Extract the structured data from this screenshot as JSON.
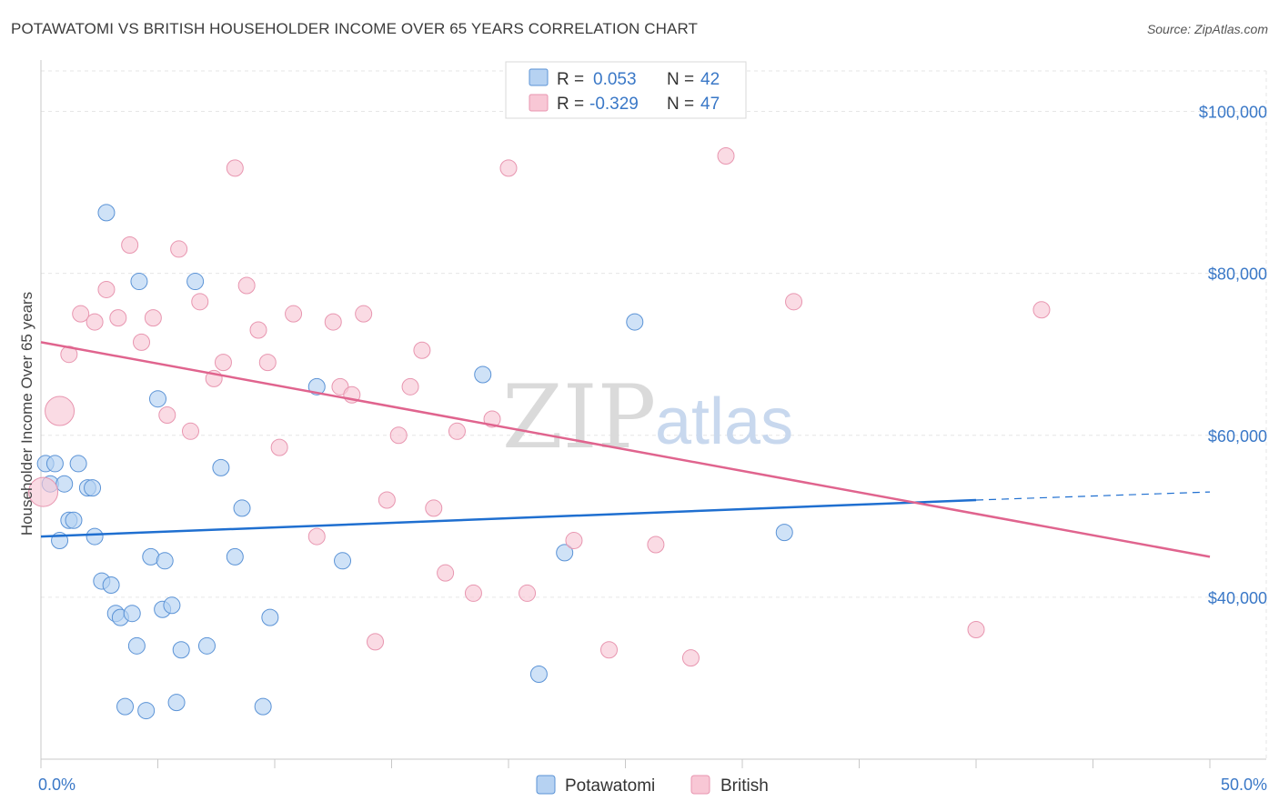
{
  "header": {
    "title": "POTAWATOMI VS BRITISH HOUSEHOLDER INCOME OVER 65 YEARS CORRELATION CHART",
    "source": "Source: ZipAtlas.com"
  },
  "watermark": {
    "zip": "ZIP",
    "atlas": "atlas"
  },
  "colors": {
    "potawatomi_fill": "#b6d2f2",
    "potawatomi_stroke": "#5b93d6",
    "potawatomi_line": "#1f6fd0",
    "british_fill": "#f8c7d5",
    "british_stroke": "#e896b0",
    "british_line": "#e0648e",
    "tick_label": "#3a78c7",
    "grid": "#e6e6e6"
  },
  "legend": {
    "rows": [
      {
        "r_label": "R =",
        "r_value": "0.053",
        "n_label": "N =",
        "n_value": "42"
      },
      {
        "r_label": "R =",
        "r_value": "-0.329",
        "n_label": "N =",
        "n_value": "47"
      }
    ]
  },
  "chart_data": {
    "type": "scatter",
    "title": "POTAWATOMI VS BRITISH HOUSEHOLDER INCOME OVER 65 YEARS CORRELATION CHART",
    "xlabel": "",
    "ylabel": "Householder Income Over 65 years",
    "xlim": [
      0,
      50
    ],
    "ylim": [
      20000,
      105000
    ],
    "x_tick_labels": [
      "0.0%",
      "50.0%"
    ],
    "y_ticks": [
      40000,
      60000,
      80000,
      100000
    ],
    "y_tick_labels": [
      "$40,000",
      "$60,000",
      "$80,000",
      "$100,000"
    ],
    "grid": true,
    "legend_position": "top-center",
    "series": [
      {
        "name": "Potawatomi",
        "R": 0.053,
        "N": 42,
        "trend": {
          "x": [
            0,
            40
          ],
          "y": [
            47500,
            52000
          ],
          "dashed_extension_to_x": 50,
          "dashed_extension_y": 53000
        },
        "points": [
          [
            0.2,
            56500,
            1
          ],
          [
            0.4,
            54000,
            1
          ],
          [
            0.6,
            56500,
            1
          ],
          [
            1.0,
            54000,
            1
          ],
          [
            0.8,
            47000,
            1
          ],
          [
            1.2,
            49500,
            1
          ],
          [
            1.4,
            49500,
            1
          ],
          [
            1.6,
            56500,
            1
          ],
          [
            2.0,
            53500,
            1
          ],
          [
            2.2,
            53500,
            1
          ],
          [
            2.3,
            47500,
            1
          ],
          [
            2.6,
            42000,
            1
          ],
          [
            3.0,
            41500,
            1
          ],
          [
            2.8,
            87500,
            1
          ],
          [
            3.2,
            38000,
            1
          ],
          [
            3.4,
            37500,
            1
          ],
          [
            3.9,
            38000,
            1
          ],
          [
            4.1,
            34000,
            1
          ],
          [
            4.2,
            79000,
            1
          ],
          [
            3.6,
            26500,
            1
          ],
          [
            4.5,
            26000,
            1
          ],
          [
            4.7,
            45000,
            1
          ],
          [
            5.0,
            64500,
            1
          ],
          [
            5.2,
            38500,
            1
          ],
          [
            5.3,
            44500,
            1
          ],
          [
            5.6,
            39000,
            1
          ],
          [
            5.8,
            27000,
            1
          ],
          [
            6.0,
            33500,
            1
          ],
          [
            6.6,
            79000,
            1
          ],
          [
            7.1,
            34000,
            1
          ],
          [
            7.7,
            56000,
            1
          ],
          [
            8.3,
            45000,
            1
          ],
          [
            8.6,
            51000,
            1
          ],
          [
            9.5,
            26500,
            1
          ],
          [
            9.8,
            37500,
            1
          ],
          [
            11.8,
            66000,
            1
          ],
          [
            12.9,
            44500,
            1
          ],
          [
            18.9,
            67500,
            1
          ],
          [
            21.3,
            30500,
            1
          ],
          [
            22.4,
            45500,
            1
          ],
          [
            25.4,
            74000,
            1
          ],
          [
            31.8,
            48000,
            1
          ]
        ]
      },
      {
        "name": "British",
        "R": -0.329,
        "N": 47,
        "trend": {
          "x": [
            0,
            50
          ],
          "y": [
            71500,
            45000
          ]
        },
        "points": [
          [
            0.1,
            53000,
            2
          ],
          [
            0.8,
            63000,
            2
          ],
          [
            1.2,
            70000,
            1
          ],
          [
            1.7,
            75000,
            1
          ],
          [
            2.3,
            74000,
            1
          ],
          [
            2.8,
            78000,
            1
          ],
          [
            3.3,
            74500,
            1
          ],
          [
            3.8,
            83500,
            1
          ],
          [
            4.3,
            71500,
            1
          ],
          [
            4.8,
            74500,
            1
          ],
          [
            5.4,
            62500,
            1
          ],
          [
            5.9,
            83000,
            1
          ],
          [
            6.4,
            60500,
            1
          ],
          [
            6.8,
            76500,
            1
          ],
          [
            7.4,
            67000,
            1
          ],
          [
            7.8,
            69000,
            1
          ],
          [
            8.3,
            93000,
            1
          ],
          [
            8.8,
            78500,
            1
          ],
          [
            9.3,
            73000,
            1
          ],
          [
            9.7,
            69000,
            1
          ],
          [
            10.2,
            58500,
            1
          ],
          [
            10.8,
            75000,
            1
          ],
          [
            11.8,
            47500,
            1
          ],
          [
            12.5,
            74000,
            1
          ],
          [
            12.8,
            66000,
            1
          ],
          [
            13.3,
            65000,
            1
          ],
          [
            13.8,
            75000,
            1
          ],
          [
            14.3,
            34500,
            1
          ],
          [
            14.8,
            52000,
            1
          ],
          [
            15.3,
            60000,
            1
          ],
          [
            15.8,
            66000,
            1
          ],
          [
            16.3,
            70500,
            1
          ],
          [
            16.8,
            51000,
            1
          ],
          [
            17.3,
            43000,
            1
          ],
          [
            17.8,
            60500,
            1
          ],
          [
            18.5,
            40500,
            1
          ],
          [
            19.3,
            62000,
            1
          ],
          [
            20.0,
            93000,
            1
          ],
          [
            20.8,
            40500,
            1
          ],
          [
            22.8,
            47000,
            1
          ],
          [
            24.3,
            33500,
            1
          ],
          [
            26.3,
            46500,
            1
          ],
          [
            27.8,
            32500,
            1
          ],
          [
            29.3,
            94500,
            1
          ],
          [
            32.2,
            76500,
            1
          ],
          [
            40.0,
            36000,
            1
          ],
          [
            42.8,
            75500,
            1
          ]
        ]
      }
    ]
  },
  "bottom_legend": {
    "items": [
      {
        "label": "Potawatomi"
      },
      {
        "label": "British"
      }
    ]
  }
}
